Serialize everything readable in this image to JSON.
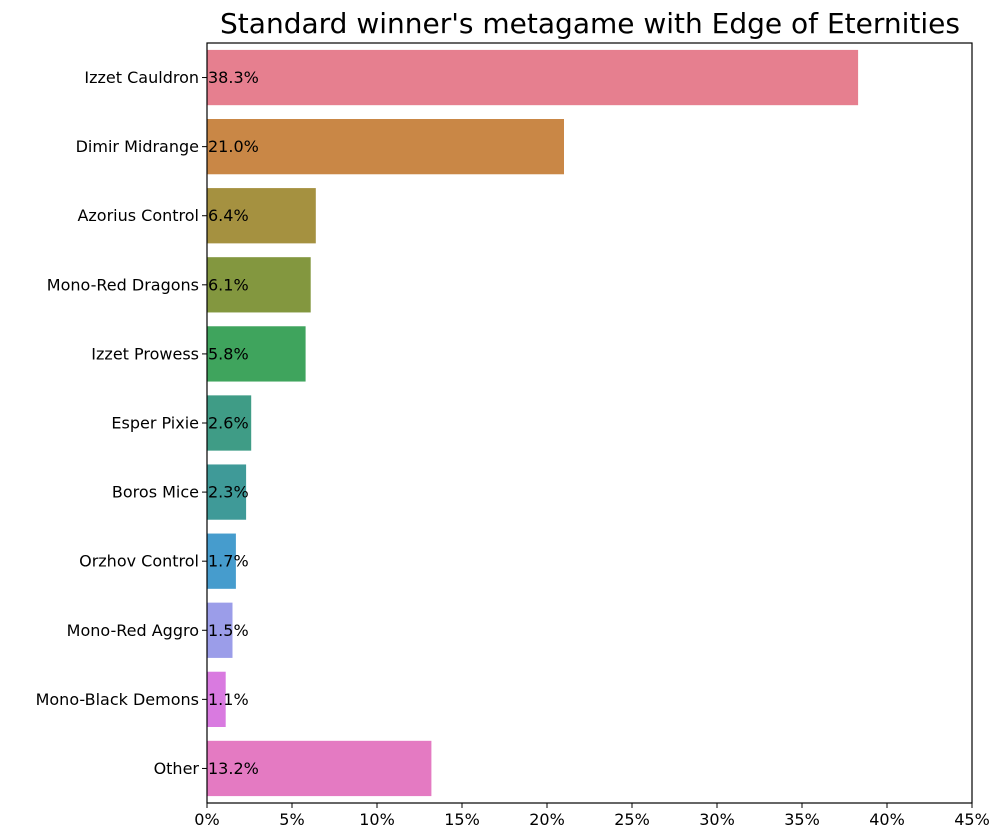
{
  "chart_data": {
    "type": "bar",
    "orientation": "horizontal",
    "title": "Standard winner's metagame with Edge of Eternities",
    "xlabel": "",
    "ylabel": "",
    "xlim": [
      0,
      45
    ],
    "x_ticks": [
      0,
      5,
      10,
      15,
      20,
      25,
      30,
      35,
      40,
      45
    ],
    "x_tick_labels": [
      "0%",
      "5%",
      "10%",
      "15%",
      "20%",
      "25%",
      "30%",
      "35%",
      "40%",
      "45%"
    ],
    "grid": false,
    "legend": "none",
    "categories": [
      "Izzet Cauldron",
      "Dimir Midrange",
      "Azorius Control",
      "Mono-Red Dragons",
      "Izzet Prowess",
      "Esper Pixie",
      "Boros Mice",
      "Orzhov Control",
      "Mono-Red Aggro",
      "Mono-Black Demons",
      "Other"
    ],
    "values": [
      38.3,
      21.0,
      6.4,
      6.1,
      5.8,
      2.6,
      2.3,
      1.7,
      1.5,
      1.1,
      13.2
    ],
    "data_labels": [
      "38.3%",
      "21.0%",
      "6.4%",
      "6.1%",
      "5.8%",
      "2.6%",
      "2.3%",
      "1.7%",
      "1.5%",
      "1.1%",
      "13.2%"
    ],
    "colors": [
      "#e67f8f",
      "#c98746",
      "#a59140",
      "#83973f",
      "#3fa45d",
      "#3f9c86",
      "#3f9a98",
      "#469ccd",
      "#9b9de9",
      "#d97ae0",
      "#e47ac2"
    ]
  }
}
